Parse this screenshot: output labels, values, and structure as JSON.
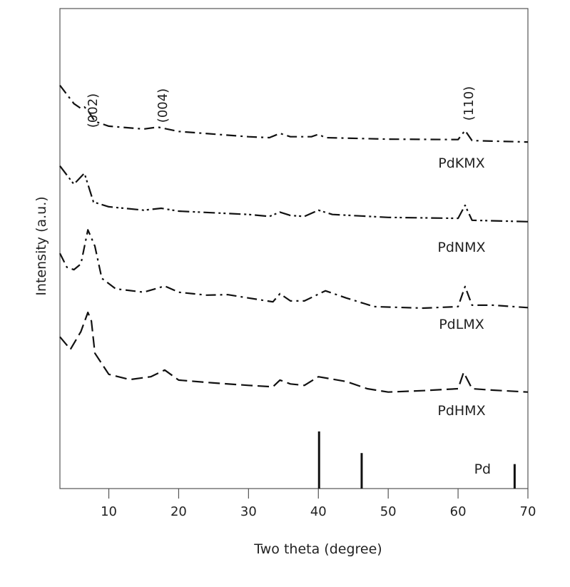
{
  "chart_data": {
    "type": "line",
    "title": "",
    "xlabel": "Two theta (degree)",
    "ylabel": "Intensity (a.u.)",
    "xlim": [
      3,
      70
    ],
    "ylim": [
      0,
      100
    ],
    "xticks": [
      10,
      20,
      30,
      40,
      50,
      60,
      70
    ],
    "grid": false,
    "legend": "inline labels at right of each trace",
    "series": [
      {
        "name": "PdKMX",
        "dash": "dash-dot",
        "x": [
          3,
          5,
          6,
          6.5,
          7,
          8,
          10,
          15,
          17,
          20,
          30,
          33,
          34.5,
          36,
          39,
          40,
          41,
          50,
          60,
          61,
          62,
          70
        ],
        "y": [
          84.0,
          80.2,
          79.2,
          79.5,
          78.8,
          76.5,
          75.5,
          74.9,
          75.3,
          74.4,
          73.3,
          73.1,
          74.0,
          73.3,
          73.3,
          73.8,
          73.1,
          72.8,
          72.7,
          74.6,
          72.5,
          72.2
        ]
      },
      {
        "name": "PdNMX",
        "dash": "dash-dot-dot",
        "x": [
          3,
          5,
          6.5,
          7.8,
          10,
          15,
          17.5,
          20,
          30,
          33,
          34.5,
          36,
          38,
          40,
          42,
          50,
          60,
          61,
          62,
          70
        ],
        "y": [
          67.2,
          63.4,
          65.7,
          59.7,
          58.7,
          58.0,
          58.4,
          57.8,
          57.1,
          56.7,
          57.6,
          56.9,
          56.7,
          58.0,
          57.1,
          56.5,
          56.3,
          59.0,
          55.9,
          55.6
        ]
      },
      {
        "name": "PdLMX",
        "dash": "dash-dot",
        "x": [
          3,
          4,
          5,
          6,
          7,
          8,
          9,
          11,
          15,
          18,
          20,
          24,
          27,
          30,
          33.5,
          34.5,
          36,
          38,
          41,
          44,
          48,
          55,
          60,
          61,
          62,
          65,
          70
        ],
        "y": [
          49.0,
          46.1,
          45.6,
          46.8,
          53.9,
          50.5,
          43.8,
          41.6,
          40.9,
          42.2,
          40.9,
          40.3,
          40.4,
          39.7,
          38.9,
          40.6,
          39.1,
          39.1,
          41.2,
          39.7,
          37.9,
          37.6,
          37.9,
          42.1,
          38.2,
          38.2,
          37.7
        ]
      },
      {
        "name": "PdHMX",
        "dash": "dashed",
        "x": [
          3,
          4.5,
          6,
          7,
          7.5,
          8,
          10,
          13,
          16,
          18,
          20,
          25,
          30,
          33.5,
          34.5,
          36,
          38,
          40,
          44,
          47,
          50,
          55,
          60,
          60.8,
          62,
          65,
          70
        ],
        "y": [
          31.6,
          29.0,
          32.7,
          36.7,
          34.9,
          28.2,
          23.8,
          22.7,
          23.3,
          24.7,
          22.6,
          22.0,
          21.5,
          21.2,
          22.6,
          21.8,
          21.5,
          23.3,
          22.3,
          20.8,
          20.1,
          20.4,
          20.8,
          24.2,
          20.8,
          20.5,
          20.1
        ]
      }
    ],
    "reference": {
      "name": "Pd",
      "type": "stick",
      "x": [
        40.1,
        46.2,
        68.1
      ],
      "y": [
        11.9,
        7.4,
        5.1
      ]
    },
    "annotations": [
      {
        "text": "(002)",
        "x": 7
      },
      {
        "text": "(004)",
        "x": 17
      },
      {
        "text": "(110)",
        "x": 60.8
      }
    ]
  }
}
